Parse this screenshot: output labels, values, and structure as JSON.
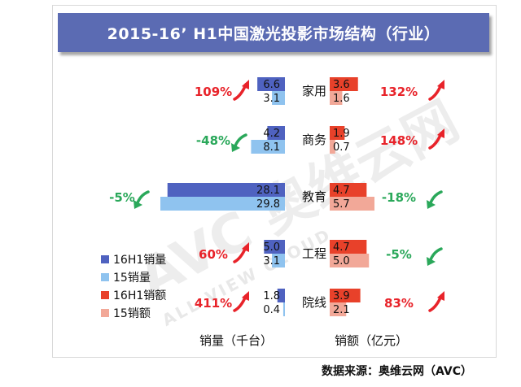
{
  "title": "2015-16’ H1中国激光投影市场结构（行业）",
  "source": "数据来源：奥维云网（AVC）",
  "watermark": {
    "logo": "AVC",
    "brand": "奥维云网",
    "tagline": "ALL VIEW CLOUD"
  },
  "colors": {
    "vol16": "#4f62c0",
    "vol15": "#8fc3ef",
    "amt16": "#e8412a",
    "amt15": "#f2a898",
    "pos": "#e8232a",
    "neg": "#2aa85a"
  },
  "chart_data": {
    "type": "bar",
    "categories": [
      "家用",
      "商务",
      "教育",
      "工程",
      "院线"
    ],
    "series": [
      {
        "name": "16H1销量",
        "values": [
          6.6,
          4.2,
          28.1,
          5.0,
          1.8
        ]
      },
      {
        "name": "15销量",
        "values": [
          3.1,
          8.1,
          29.8,
          3.1,
          0.4
        ]
      },
      {
        "name": "16H1销额",
        "values": [
          3.6,
          1.9,
          4.7,
          4.7,
          3.9
        ]
      },
      {
        "name": "15销额",
        "values": [
          1.6,
          0.7,
          5.7,
          5.0,
          2.1
        ]
      }
    ],
    "volume_growth": [
      "109%",
      "-48%",
      "-5%",
      "60%",
      "411%"
    ],
    "amount_growth": [
      "132%",
      "148%",
      "-18%",
      "-5%",
      "83%"
    ],
    "xlabel_left": "销量（千台）",
    "xlabel_right": "销额（亿元）",
    "legend": [
      "16H1销量",
      "15销量",
      "16H1销额",
      "15销额"
    ],
    "legend_position": "bottom-left"
  }
}
